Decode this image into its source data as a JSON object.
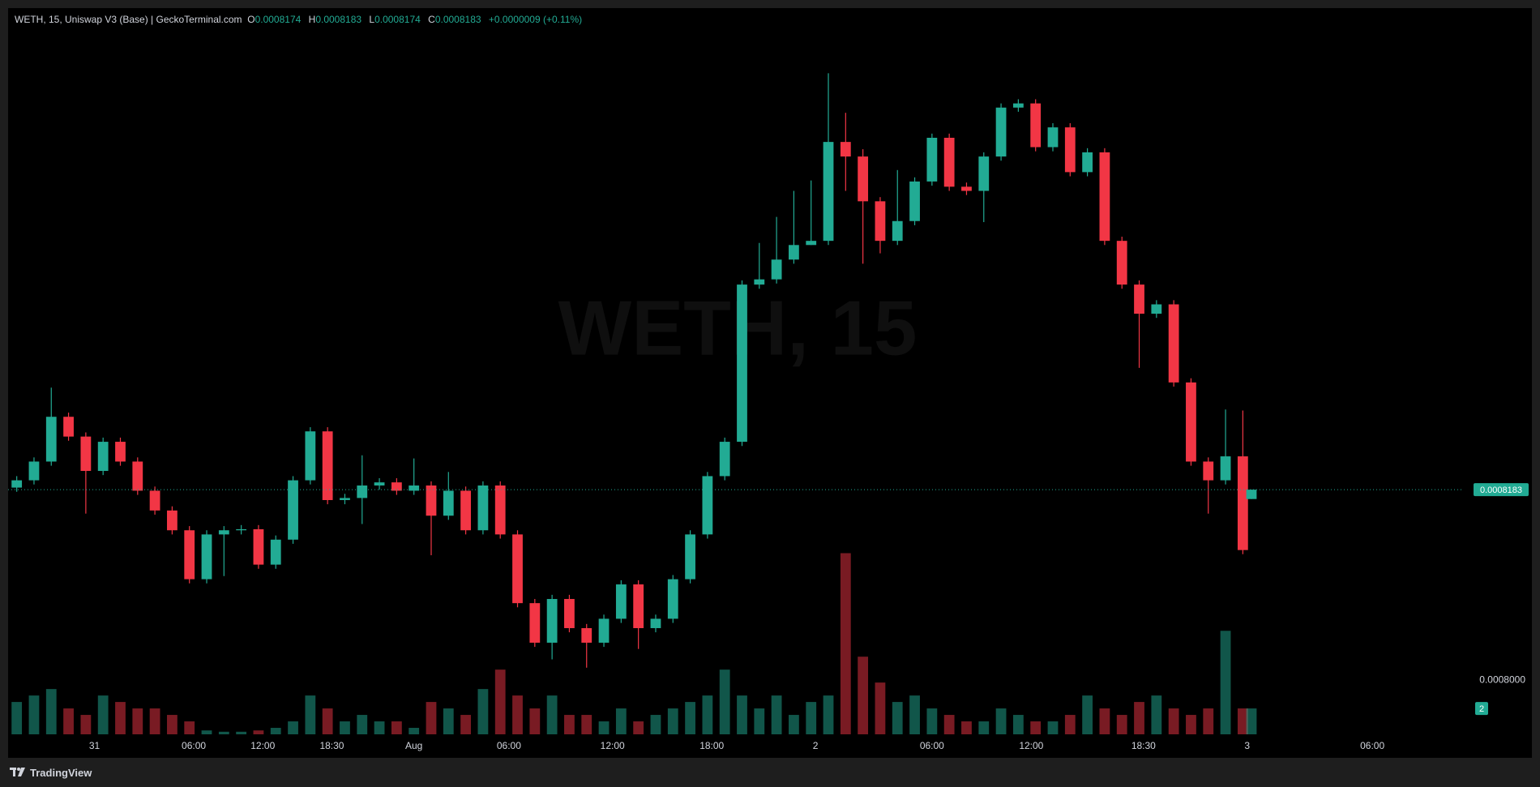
{
  "chart_data": {
    "type": "candlestick",
    "title": "WETH, 15, Uniswap V3 (Base) | GeckoTerminal.com",
    "ohlc_letters": [
      "O",
      "H",
      "L",
      "C"
    ],
    "change": "+0.0000009 (+0.11%)",
    "watermark": "WETH, 15",
    "colors": {
      "up": "#22ab94",
      "down": "#f23645"
    },
    "xlim": [
      0,
      337
    ],
    "ylim": [
      0.0007948,
      0.0008644
    ],
    "vlim": [
      0,
      56
    ],
    "yticks": [
      {
        "value": 0.0008,
        "label": "0.0008000"
      }
    ],
    "xticks": [
      {
        "value": 20,
        "label": "31"
      },
      {
        "value": 43,
        "label": "06:00"
      },
      {
        "value": 59,
        "label": "12:00"
      },
      {
        "value": 75,
        "label": "18:30"
      },
      {
        "value": 94,
        "label": "Aug"
      },
      {
        "value": 116,
        "label": "06:00"
      },
      {
        "value": 140,
        "label": "12:00"
      },
      {
        "value": 163,
        "label": "18:00"
      },
      {
        "value": 187,
        "label": "2"
      },
      {
        "value": 214,
        "label": "06:00"
      },
      {
        "value": 237,
        "label": "12:00"
      },
      {
        "value": 263,
        "label": "18:30"
      },
      {
        "value": 287,
        "label": "3"
      },
      {
        "value": 316,
        "label": "06:00"
      }
    ],
    "x": [
      2,
      6,
      10,
      14,
      18,
      22,
      26,
      30,
      34,
      38,
      42,
      46,
      50,
      54,
      58,
      62,
      66,
      70,
      74,
      78,
      82,
      86,
      90,
      94,
      98,
      102,
      106,
      110,
      114,
      118,
      122,
      126,
      130,
      134,
      138,
      142,
      146,
      150,
      154,
      158,
      162,
      166,
      170,
      174,
      178,
      182,
      186,
      190,
      194,
      198,
      202,
      206,
      210,
      214,
      218,
      222,
      226,
      230,
      234,
      238,
      242,
      246,
      250,
      254,
      258,
      262,
      266,
      270,
      274,
      278,
      282,
      286,
      288
    ],
    "open": [
      0.0008185,
      0.0008192,
      0.000821,
      0.0008253,
      0.0008234,
      0.0008201,
      0.0008229,
      0.000821,
      0.0008182,
      0.0008163,
      0.0008144,
      0.0008097,
      0.000814,
      0.0008144,
      0.0008145,
      0.0008111,
      0.0008135,
      0.0008192,
      0.0008239,
      0.0008173,
      0.0008175,
      0.0008187,
      0.000819,
      0.0008182,
      0.0008187,
      0.0008158,
      0.0008182,
      0.0008144,
      0.0008187,
      0.000814,
      0.0008074,
      0.0008036,
      0.0008078,
      0.000805,
      0.0008036,
      0.0008059,
      0.0008092,
      0.000805,
      0.0008059,
      0.0008097,
      0.000814,
      0.0008196,
      0.0008229,
      0.000838,
      0.0008385,
      0.0008404,
      0.0008418,
      0.0008422,
      0.0008517,
      0.0008503,
      0.000846,
      0.0008422,
      0.0008441,
      0.0008479,
      0.0008521,
      0.0008474,
      0.000847,
      0.0008503,
      0.000855,
      0.0008554,
      0.0008512,
      0.0008531,
      0.0008488,
      0.0008507,
      0.0008422,
      0.000838,
      0.0008352,
      0.0008361,
      0.0008286,
      0.000821,
      0.0008192,
      0.0008215,
      0.0008174
    ],
    "high": [
      0.0008196,
      0.0008214,
      0.0008281,
      0.0008257,
      0.0008238,
      0.0008233,
      0.0008233,
      0.0008214,
      0.0008186,
      0.0008167,
      0.0008148,
      0.0008144,
      0.0008148,
      0.0008149,
      0.0008149,
      0.0008139,
      0.0008196,
      0.0008243,
      0.0008243,
      0.0008179,
      0.0008216,
      0.0008194,
      0.0008194,
      0.0008213,
      0.0008191,
      0.00082,
      0.0008186,
      0.0008191,
      0.0008191,
      0.0008144,
      0.0008078,
      0.0008082,
      0.0008082,
      0.0008054,
      0.0008063,
      0.0008096,
      0.0008096,
      0.0008063,
      0.0008101,
      0.0008144,
      0.00082,
      0.0008233,
      0.0008384,
      0.000842,
      0.0008445,
      0.000847,
      0.000848,
      0.0008583,
      0.0008545,
      0.000851,
      0.0008464,
      0.000849,
      0.0008483,
      0.0008525,
      0.0008525,
      0.0008478,
      0.0008507,
      0.0008554,
      0.0008558,
      0.0008558,
      0.0008535,
      0.0008535,
      0.0008511,
      0.0008511,
      0.0008426,
      0.0008384,
      0.0008365,
      0.0008365,
      0.000829,
      0.0008214,
      0.000826,
      0.0008259,
      0.0008183
    ],
    "low": [
      0.0008181,
      0.0008188,
      0.0008206,
      0.000823,
      0.000816,
      0.0008197,
      0.0008206,
      0.0008178,
      0.0008159,
      0.000814,
      0.0008093,
      0.0008093,
      0.00081,
      0.000814,
      0.0008107,
      0.0008107,
      0.0008131,
      0.0008188,
      0.0008169,
      0.0008169,
      0.000815,
      0.0008183,
      0.0008178,
      0.0008178,
      0.000812,
      0.0008154,
      0.000814,
      0.000814,
      0.0008136,
      0.000807,
      0.0008032,
      0.000802,
      0.0008046,
      0.0008012,
      0.0008032,
      0.0008055,
      0.000803,
      0.0008046,
      0.0008055,
      0.0008093,
      0.0008136,
      0.0008192,
      0.0008225,
      0.0008376,
      0.0008381,
      0.00084,
      0.0008418,
      0.0008418,
      0.000847,
      0.00084,
      0.000841,
      0.0008418,
      0.0008437,
      0.0008475,
      0.000847,
      0.0008466,
      0.000844,
      0.0008499,
      0.0008546,
      0.0008508,
      0.0008508,
      0.0008484,
      0.0008484,
      0.0008418,
      0.0008376,
      0.00083,
      0.0008348,
      0.0008282,
      0.0008206,
      0.000816,
      0.0008188,
      0.0008121,
      0.0008174
    ],
    "close": [
      0.0008192,
      0.000821,
      0.0008253,
      0.0008234,
      0.0008201,
      0.0008229,
      0.000821,
      0.0008182,
      0.0008163,
      0.0008144,
      0.0008097,
      0.000814,
      0.0008144,
      0.0008145,
      0.0008111,
      0.0008135,
      0.0008192,
      0.0008239,
      0.0008173,
      0.0008175,
      0.0008187,
      0.000819,
      0.0008182,
      0.0008187,
      0.0008158,
      0.0008182,
      0.0008144,
      0.0008187,
      0.000814,
      0.0008074,
      0.0008036,
      0.0008078,
      0.000805,
      0.0008036,
      0.0008059,
      0.0008092,
      0.000805,
      0.0008059,
      0.0008097,
      0.000814,
      0.0008196,
      0.0008229,
      0.000838,
      0.0008385,
      0.0008404,
      0.0008418,
      0.0008422,
      0.0008517,
      0.0008503,
      0.000846,
      0.0008422,
      0.0008441,
      0.0008479,
      0.0008521,
      0.0008474,
      0.000847,
      0.0008503,
      0.000855,
      0.0008554,
      0.0008512,
      0.0008531,
      0.0008488,
      0.0008507,
      0.0008422,
      0.000838,
      0.0008352,
      0.0008361,
      0.0008286,
      0.000821,
      0.0008192,
      0.0008215,
      0.0008125,
      0.0008183
    ],
    "volume": [
      2.5,
      3,
      3.5,
      2,
      1.5,
      3,
      2.5,
      2,
      2,
      1.5,
      1,
      0.3,
      0.2,
      0.2,
      0.3,
      0.5,
      1,
      3,
      2,
      1,
      1.5,
      1,
      1,
      0.5,
      2.5,
      2,
      1.5,
      3.5,
      5,
      3,
      2,
      3,
      1.5,
      1.5,
      1,
      2,
      1,
      1.5,
      2,
      2.5,
      3,
      5,
      3,
      2,
      3,
      1.5,
      2.5,
      3,
      14,
      6,
      4,
      2.5,
      3,
      2,
      1.5,
      1,
      1,
      2,
      1.5,
      1,
      1,
      1.5,
      3,
      2,
      1.5,
      2.5,
      3,
      2,
      1.5,
      2,
      8,
      2,
      2
    ]
  },
  "footer": {
    "brand": "TradingView"
  }
}
